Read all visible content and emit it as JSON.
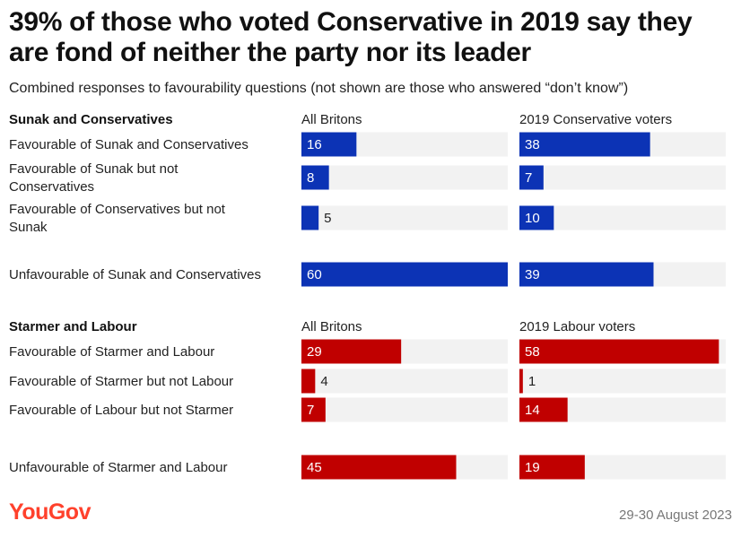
{
  "title": "39% of those who voted Conservative in 2019 say they are fond of neither the party nor its leader",
  "subtitle": "Combined responses to favourability questions (not shown are those who answered “don’t know”)",
  "footer": {
    "logo": "YouGov",
    "date": "29-30 August 2023"
  },
  "colors": {
    "blue": "#0c33b5",
    "red": "#c00000",
    "track": "#f2f2f2"
  },
  "chart_data": {
    "type": "bar",
    "orientation": "horizontal",
    "xlim": [
      0,
      60
    ],
    "groups": [
      {
        "heading": "Sunak and Conservatives",
        "color": "blue",
        "columns": [
          "All Britons",
          "2019 Conservative voters"
        ],
        "rows": [
          {
            "label": [
              "Favourable of Sunak and Conservatives"
            ],
            "values": [
              16,
              38
            ]
          },
          {
            "label": [
              "Favourable of Sunak but not",
              "Conservatives"
            ],
            "values": [
              8,
              7
            ]
          },
          {
            "label": [
              "Favourable of Conservatives but not",
              "Sunak"
            ],
            "values": [
              5,
              10
            ]
          },
          {
            "label": [
              "Unfavourable of Sunak and Conservatives"
            ],
            "values": [
              60,
              39
            ]
          }
        ]
      },
      {
        "heading": "Starmer and Labour",
        "color": "red",
        "columns": [
          "All Britons",
          "2019 Labour voters"
        ],
        "rows": [
          {
            "label": [
              "Favourable of Starmer and Labour"
            ],
            "values": [
              29,
              58
            ]
          },
          {
            "label": [
              "Favourable of Starmer but not Labour"
            ],
            "values": [
              4,
              1
            ]
          },
          {
            "label": [
              "Favourable of Labour but not Starmer"
            ],
            "values": [
              7,
              14
            ]
          },
          {
            "label": [
              "Unfavourable of Starmer and Labour"
            ],
            "values": [
              45,
              19
            ]
          }
        ]
      }
    ]
  }
}
